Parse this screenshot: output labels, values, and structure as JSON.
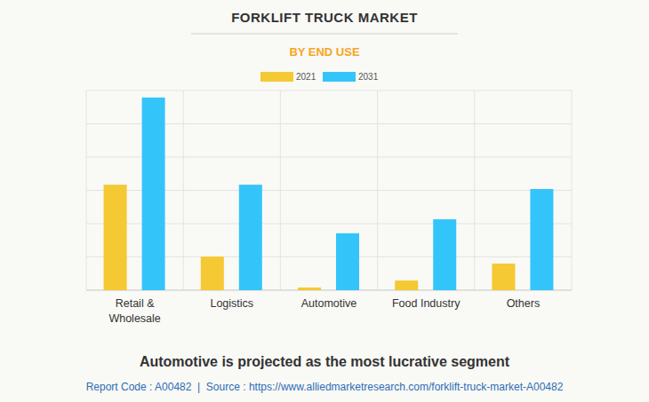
{
  "chart_data": {
    "type": "bar",
    "title": "FORKLIFT TRUCK MARKET",
    "subtitle": "BY END USE",
    "caption": "Automotive is projected as the most lucrative segment",
    "source": "Report Code : A00482  |  Source : https://www.alliedmarketresearch.com/forklift-truck-market-A00482",
    "categories": [
      "Retail & Wholesale",
      "Logistics",
      "Automotive",
      "Food Industry",
      "Others"
    ],
    "series": [
      {
        "name": "2021",
        "color": "#f5c933",
        "values": [
          3.17,
          1.01,
          0.08,
          0.29,
          0.8
        ]
      },
      {
        "name": "2031",
        "color": "#33c5fa",
        "values": [
          5.79,
          3.17,
          1.71,
          2.13,
          3.04
        ]
      }
    ],
    "ylim": [
      0,
      6
    ],
    "yticks": [
      0,
      1,
      2,
      3,
      4,
      5,
      6
    ],
    "grid": true,
    "legend": "top",
    "tick_labels": "x"
  }
}
